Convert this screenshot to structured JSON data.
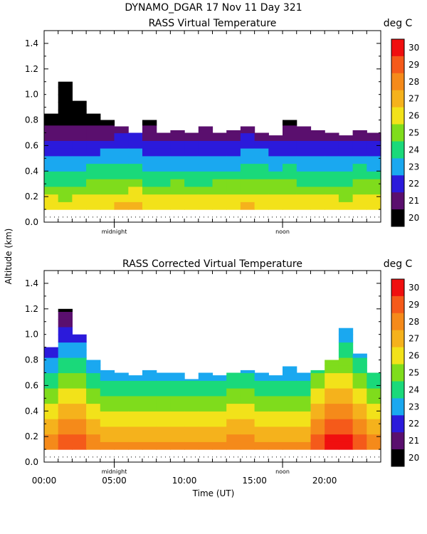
{
  "header": "DYNAMO_DGAR  17 Nov 11 Day 321",
  "shared_ylabel": "Altitude (km)",
  "shared_xlabel": "Time (UT)",
  "chart_data": [
    {
      "type": "heatmap",
      "title": "RASS Virtual Temperature",
      "colorbar_label": "deg C",
      "x_range_hours": [
        0,
        24
      ],
      "y_range_km": [
        0,
        1.5
      ],
      "yticks": [
        "0.0",
        "0.2",
        "0.4",
        "0.6",
        "0.8",
        "1.0",
        "1.2",
        "1.4"
      ],
      "xtick_labels": [],
      "day_markers": [
        {
          "hour": 5,
          "label": "midnight"
        },
        {
          "hour": 17,
          "label": "noon"
        }
      ],
      "colorbar_ticks": [
        "20",
        "21",
        "22",
        "23",
        "24",
        "25",
        "26",
        "27",
        "28",
        "29",
        "30"
      ],
      "color_levels": [
        "#000000",
        "#5a0f6e",
        "#2b1adb",
        "#1aa8f0",
        "#1ad97a",
        "#7fdc1c",
        "#f2e21a",
        "#f5b21c",
        "#f58a1a",
        "#f55a1a",
        "#f00f0f"
      ],
      "profile_base_c": [
        26.9,
        26.4,
        26.7,
        26.6,
        27.0,
        26.8,
        27.4,
        26.9,
        26.4,
        26.8,
        26.7,
        26.5,
        26.8,
        26.6,
        26.8,
        27.2,
        26.6,
        26.9,
        26.7,
        26.5,
        26.8,
        26.4,
        26.7,
        26.9,
        26.6
      ],
      "lapse_c_per_km": 9.2,
      "valid_top_km": [
        0.85,
        1.1,
        0.95,
        0.85,
        0.8,
        0.75,
        0.7,
        0.8,
        0.7,
        0.72,
        0.7,
        0.75,
        0.7,
        0.72,
        0.75,
        0.7,
        0.68,
        0.8,
        0.75,
        0.72,
        0.7,
        0.68,
        0.72,
        0.7,
        0.72
      ]
    },
    {
      "type": "heatmap",
      "title": "RASS Corrected Virtual Temperature",
      "colorbar_label": "deg C",
      "x_range_hours": [
        0,
        24
      ],
      "y_range_km": [
        0,
        1.5
      ],
      "yticks": [
        "0.0",
        "0.2",
        "0.4",
        "0.6",
        "0.8",
        "1.0",
        "1.2",
        "1.4"
      ],
      "xtick_labels": [
        "00:00",
        "05:00",
        "10:00",
        "15:00",
        "20:00"
      ],
      "xtick_hours": [
        0,
        5,
        10,
        15,
        20
      ],
      "day_markers": [
        {
          "hour": 5,
          "label": "midnight"
        },
        {
          "hour": 17,
          "label": "noon"
        }
      ],
      "colorbar_ticks": [
        "20",
        "21",
        "22",
        "23",
        "24",
        "25",
        "26",
        "27",
        "28",
        "29",
        "30"
      ],
      "color_levels": [
        "#000000",
        "#5a0f6e",
        "#2b1adb",
        "#1aa8f0",
        "#1ad97a",
        "#7fdc1c",
        "#f2e21a",
        "#f5b21c",
        "#f58a1a",
        "#f55a1a",
        "#f00f0f"
      ],
      "profile_base_c": [
        28.2,
        29.5,
        30.4,
        28.8,
        28.4,
        28.6,
        28.3,
        28.5,
        28.2,
        28.4,
        28.3,
        28.5,
        28.4,
        28.6,
        28.9,
        28.4,
        28.3,
        28.5,
        28.4,
        28.6,
        30.6,
        30.8,
        30.5,
        28.9,
        28.4
      ],
      "lapse_c_per_km": 8.4,
      "valid_top_km": [
        0.9,
        1.2,
        1.0,
        0.8,
        0.72,
        0.7,
        0.68,
        0.72,
        0.7,
        0.7,
        0.65,
        0.7,
        0.68,
        0.7,
        0.72,
        0.7,
        0.68,
        0.75,
        0.7,
        0.72,
        0.8,
        1.05,
        0.85,
        0.7,
        0.68
      ]
    }
  ]
}
